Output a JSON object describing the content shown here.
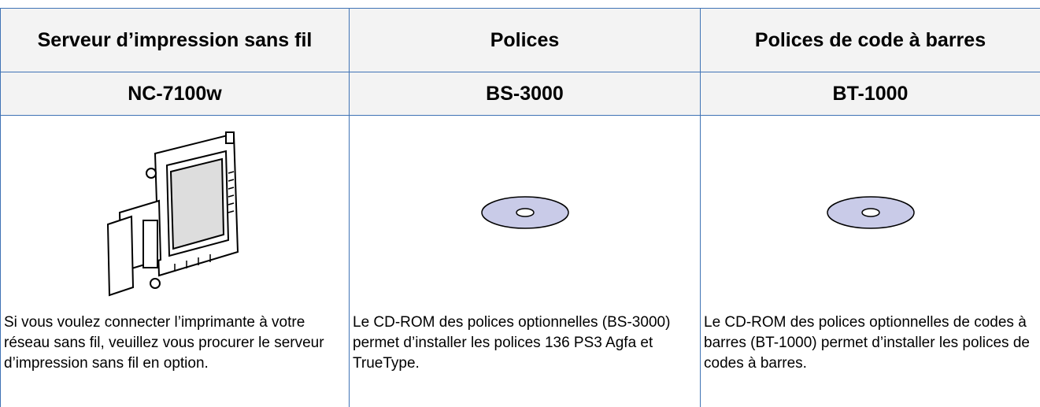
{
  "table": {
    "header": [
      "Serveur d’impression sans fil",
      "Polices",
      "Polices de code à barres"
    ],
    "models": [
      "NC-7100w",
      "BS-3000",
      "BT-1000"
    ],
    "descriptions": [
      "Si vous voulez connecter l’imprimante à votre réseau sans fil, veuillez vous procurer le serveur d’impression sans fil en option.",
      "Le CD-ROM des polices optionnelles (BS-3000) permet d’installer les polices 136 PS3 Agfa et TrueType.",
      "Le CD-ROM des polices optionnelles de codes à barres (BT-1000) permet d’installer les polices de codes à barres."
    ]
  }
}
